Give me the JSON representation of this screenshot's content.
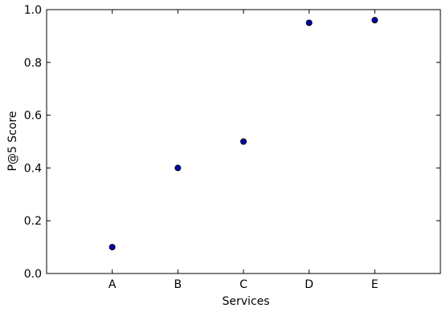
{
  "chart_data": {
    "type": "scatter",
    "title": "",
    "xlabel": "Services",
    "ylabel": "P@5 Score",
    "categories": [
      "A",
      "B",
      "C",
      "D",
      "E"
    ],
    "series": [
      {
        "values": [
          0.1,
          0.4,
          0.5,
          0.95,
          0.96
        ]
      }
    ],
    "x_range": [
      0,
      6
    ],
    "ylim": [
      0.0,
      1.0
    ],
    "y_ticks": [
      "0.0",
      "0.2",
      "0.4",
      "0.6",
      "0.8",
      "1.0"
    ],
    "grid": false,
    "legend": "none",
    "marker_color": "#0000bf"
  }
}
